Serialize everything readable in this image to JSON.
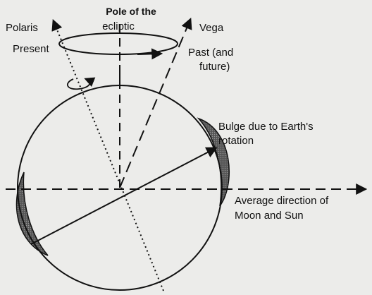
{
  "labels": {
    "pole_of_ecliptic": [
      "Pole of the",
      "ecliptic"
    ],
    "polaris": "Polaris",
    "vega": "Vega",
    "present": "Present",
    "past": [
      "Past (and",
      "future)"
    ],
    "bulge": [
      "Bulge due to Earth's",
      "rotation"
    ],
    "average_direction": [
      "Average direction of",
      "Moon and Sun"
    ]
  }
}
